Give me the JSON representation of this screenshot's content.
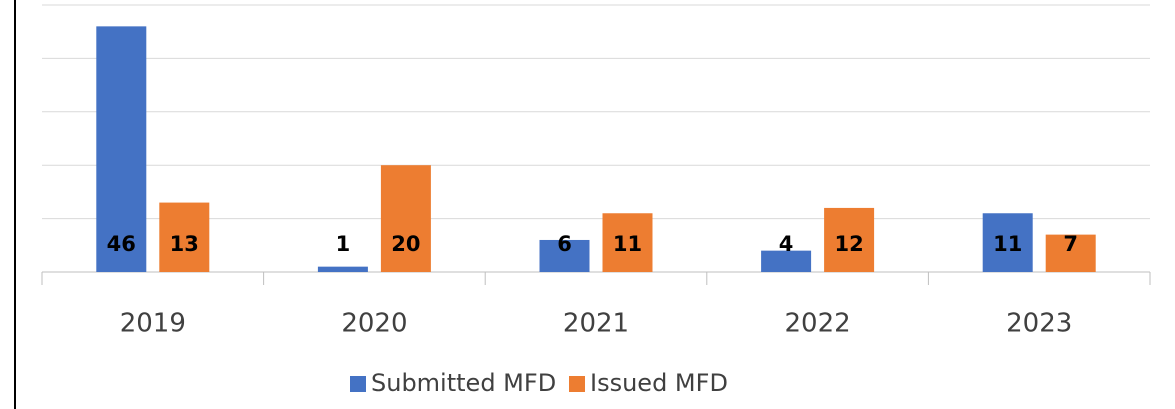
{
  "chart_data": {
    "type": "bar",
    "categories": [
      "2019",
      "2020",
      "2021",
      "2022",
      "2023"
    ],
    "series": [
      {
        "name": "Submitted MFD",
        "color": "#4472c4",
        "values": [
          46,
          1,
          6,
          4,
          11
        ]
      },
      {
        "name": "Issued MFD",
        "color": "#ed7d31",
        "values": [
          13,
          20,
          11,
          12,
          7
        ]
      }
    ],
    "ylim": [
      0,
      50
    ],
    "yticks": [
      0,
      10,
      20,
      30,
      40,
      50
    ],
    "grid": true,
    "legend": "bottom"
  }
}
